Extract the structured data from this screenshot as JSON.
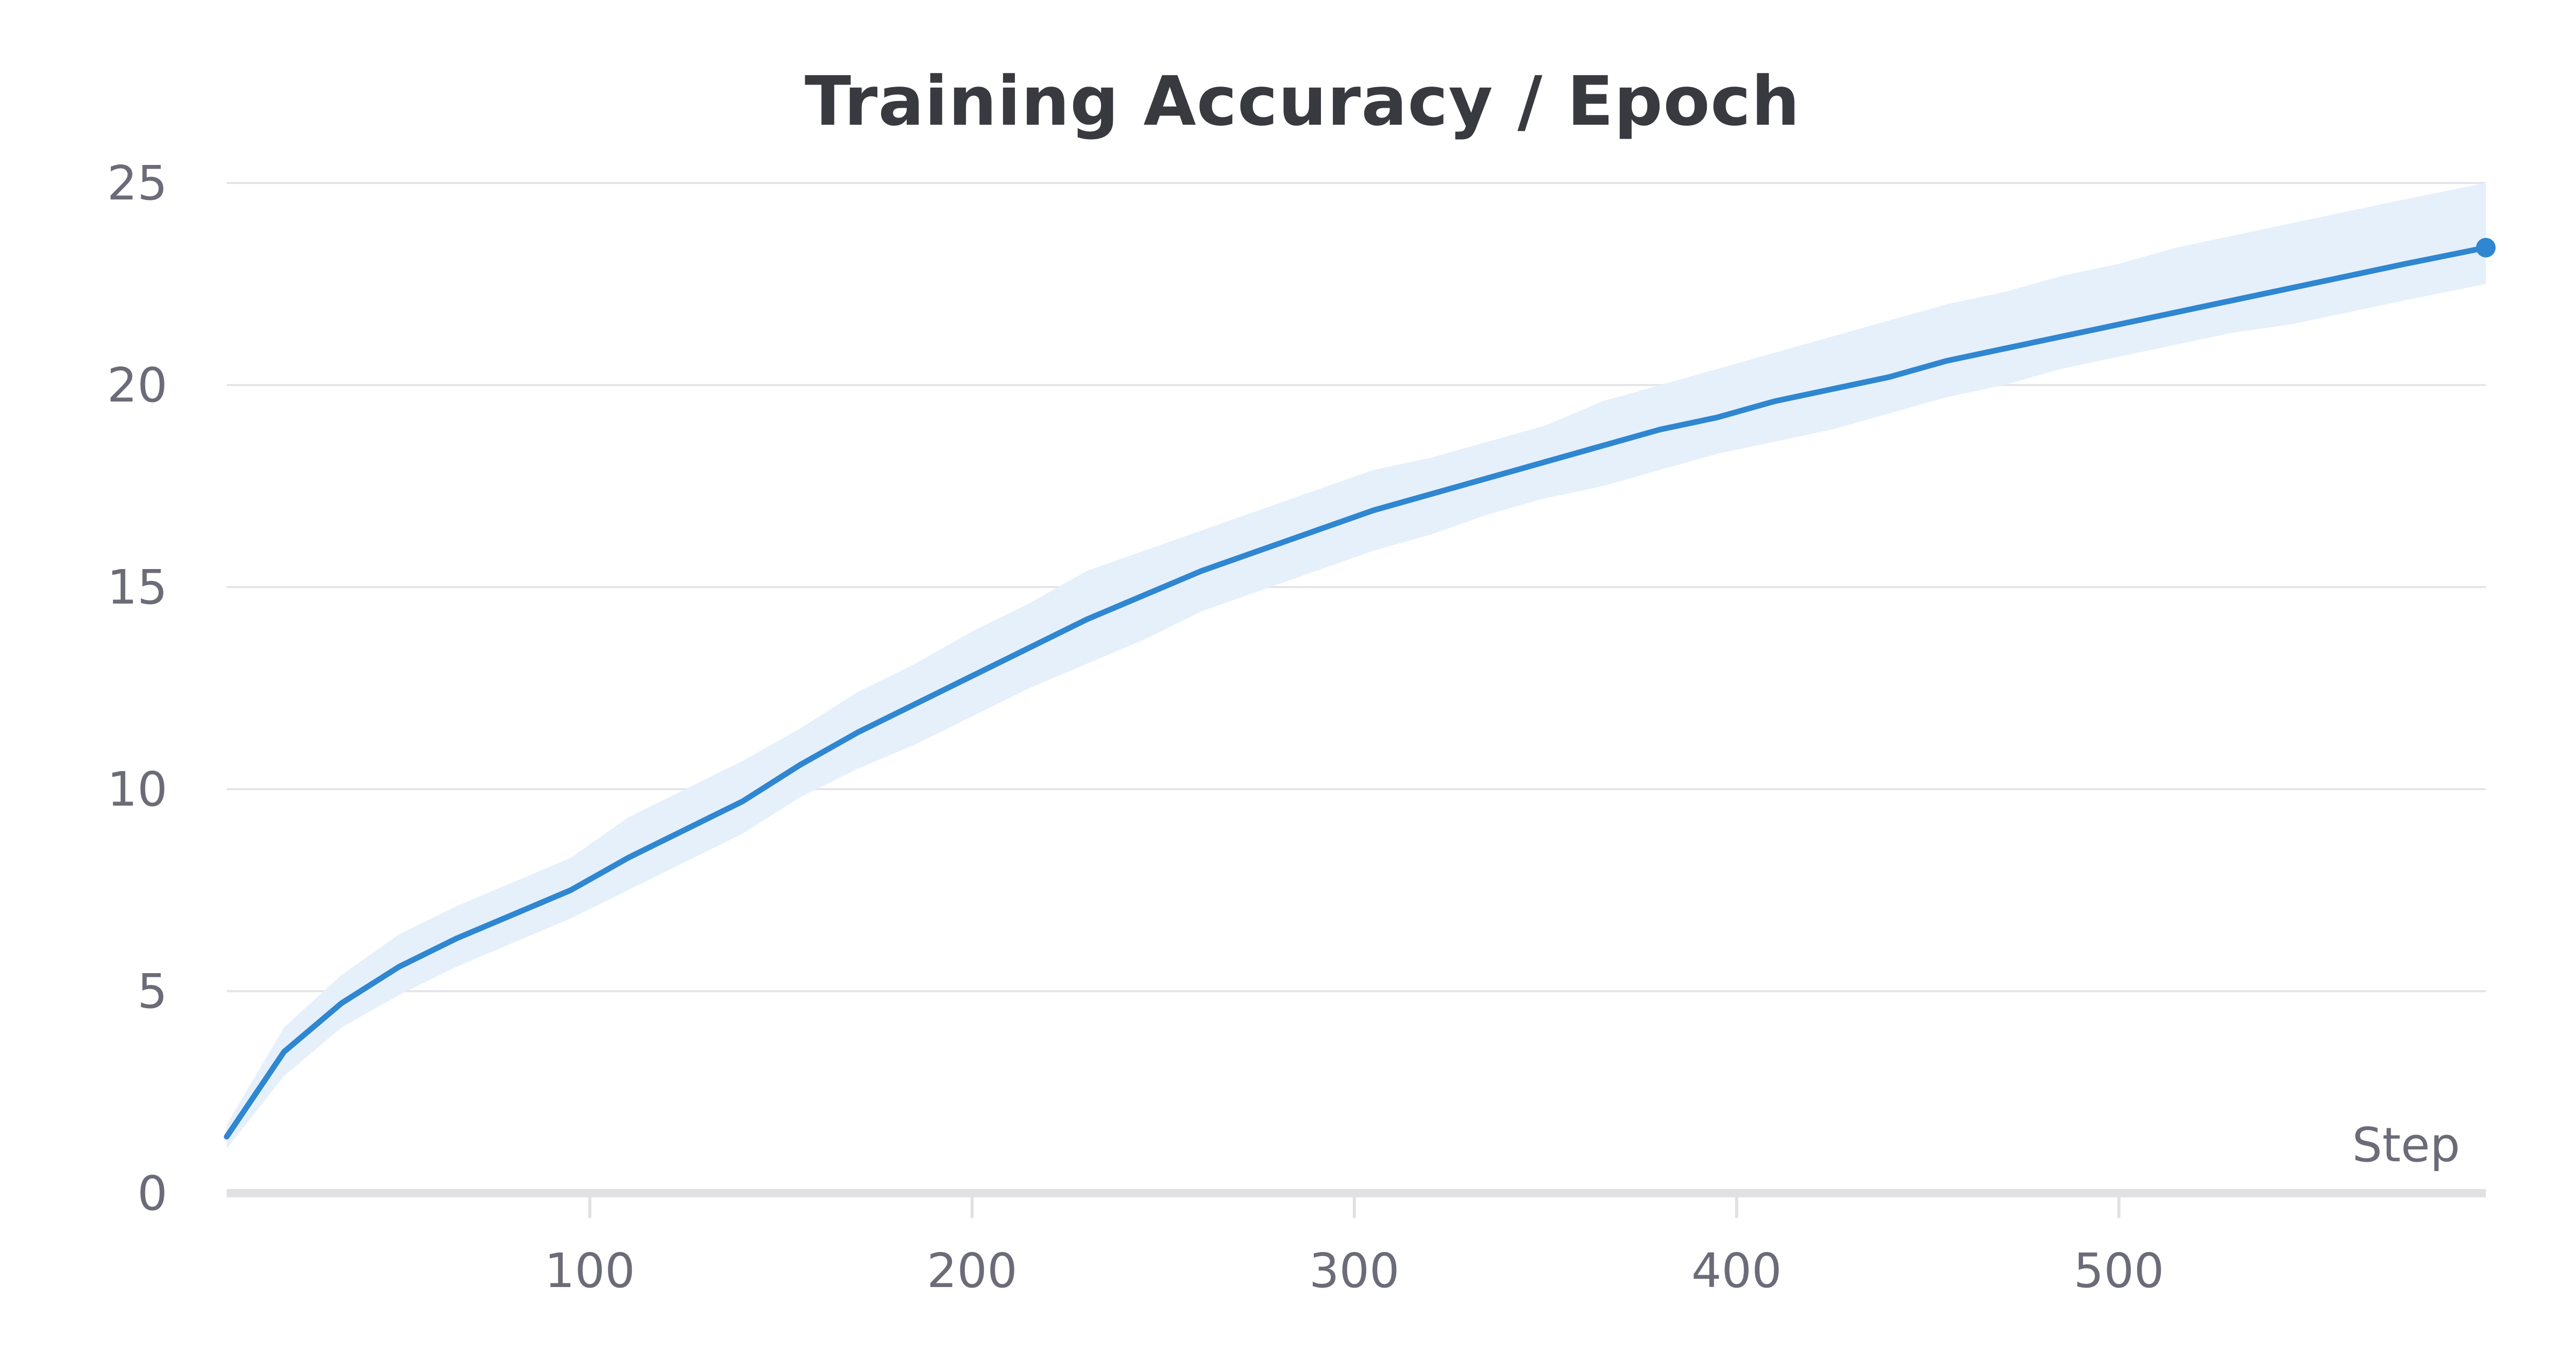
{
  "chart_data": {
    "type": "line",
    "title": "Training Accuracy / Epoch",
    "xlabel": "Step",
    "ylabel": "",
    "xlim": [
      5,
      596
    ],
    "ylim": [
      0,
      25
    ],
    "x_ticks": [
      100,
      200,
      300,
      400,
      500
    ],
    "y_ticks": [
      0,
      5,
      10,
      15,
      20,
      25
    ],
    "grid": "horizontal",
    "colors": {
      "line": "#2f86d1",
      "band": "#e6f0fb",
      "grid": "#e5e5e9",
      "axis": "#e1e1e3",
      "text": "#6b6c78"
    },
    "series": [
      {
        "x": [
          5,
          20,
          35,
          50,
          65,
          80,
          95,
          110,
          125,
          140,
          155,
          170,
          185,
          200,
          215,
          230,
          245,
          260,
          275,
          290,
          305,
          320,
          335,
          350,
          365,
          380,
          395,
          410,
          425,
          440,
          455,
          470,
          485,
          500,
          515,
          530,
          545,
          560,
          575,
          596
        ],
        "values": [
          1.4,
          3.5,
          4.7,
          5.6,
          6.3,
          6.9,
          7.5,
          8.3,
          9.0,
          9.7,
          10.6,
          11.4,
          12.1,
          12.8,
          13.5,
          14.2,
          14.8,
          15.4,
          15.9,
          16.4,
          16.9,
          17.3,
          17.7,
          18.1,
          18.5,
          18.9,
          19.2,
          19.6,
          19.9,
          20.2,
          20.6,
          20.9,
          21.2,
          21.5,
          21.8,
          22.1,
          22.4,
          22.7,
          23.0,
          23.4
        ],
        "upper": [
          1.7,
          4.1,
          5.4,
          6.4,
          7.1,
          7.7,
          8.3,
          9.3,
          10.0,
          10.7,
          11.5,
          12.4,
          13.1,
          13.9,
          14.6,
          15.4,
          15.9,
          16.4,
          16.9,
          17.4,
          17.9,
          18.2,
          18.6,
          19.0,
          19.6,
          20.0,
          20.4,
          20.8,
          21.2,
          21.6,
          22.0,
          22.3,
          22.7,
          23.0,
          23.4,
          23.7,
          24.0,
          24.3,
          24.6,
          25.0
        ],
        "lower": [
          1.1,
          2.9,
          4.1,
          4.9,
          5.6,
          6.2,
          6.8,
          7.5,
          8.2,
          8.9,
          9.8,
          10.5,
          11.1,
          11.8,
          12.5,
          13.1,
          13.7,
          14.4,
          14.9,
          15.4,
          15.9,
          16.3,
          16.8,
          17.2,
          17.5,
          17.9,
          18.3,
          18.6,
          18.9,
          19.3,
          19.7,
          20.0,
          20.4,
          20.7,
          21.0,
          21.3,
          21.5,
          21.8,
          22.1,
          22.5
        ]
      }
    ]
  }
}
